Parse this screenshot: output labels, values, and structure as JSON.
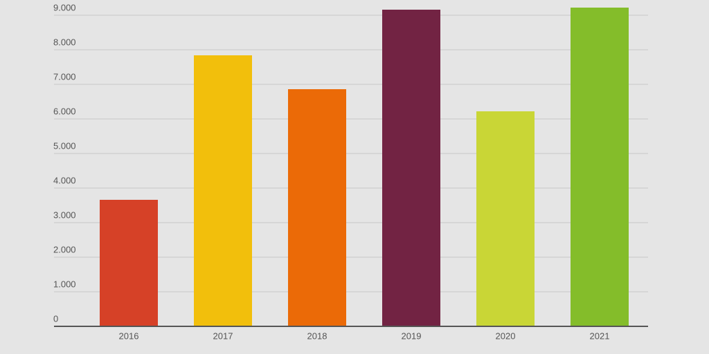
{
  "chart_data": {
    "type": "bar",
    "categories": [
      "2016",
      "2017",
      "2018",
      "2019",
      "2020",
      "2021"
    ],
    "values": [
      3660,
      7840,
      6860,
      9160,
      6220,
      9220
    ],
    "colors": [
      "#d64127",
      "#f2bf0c",
      "#eb6a07",
      "#722343",
      "#c9d636",
      "#84bd2a"
    ],
    "ylim": [
      0,
      9300
    ],
    "yticks": [
      0,
      {
        "value": 1000,
        "label": "1.000"
      },
      {
        "value": 2000,
        "label": "2.000"
      },
      {
        "value": 3000,
        "label": "3.000"
      },
      {
        "value": 4000,
        "label": "4.000"
      },
      {
        "value": 5000,
        "label": "5.000"
      },
      {
        "value": 6000,
        "label": "6.000"
      },
      {
        "value": 7000,
        "label": "7.000"
      },
      {
        "value": 8000,
        "label": "8.000"
      },
      {
        "value": 9000,
        "label": "9.000"
      }
    ],
    "grid": true
  }
}
